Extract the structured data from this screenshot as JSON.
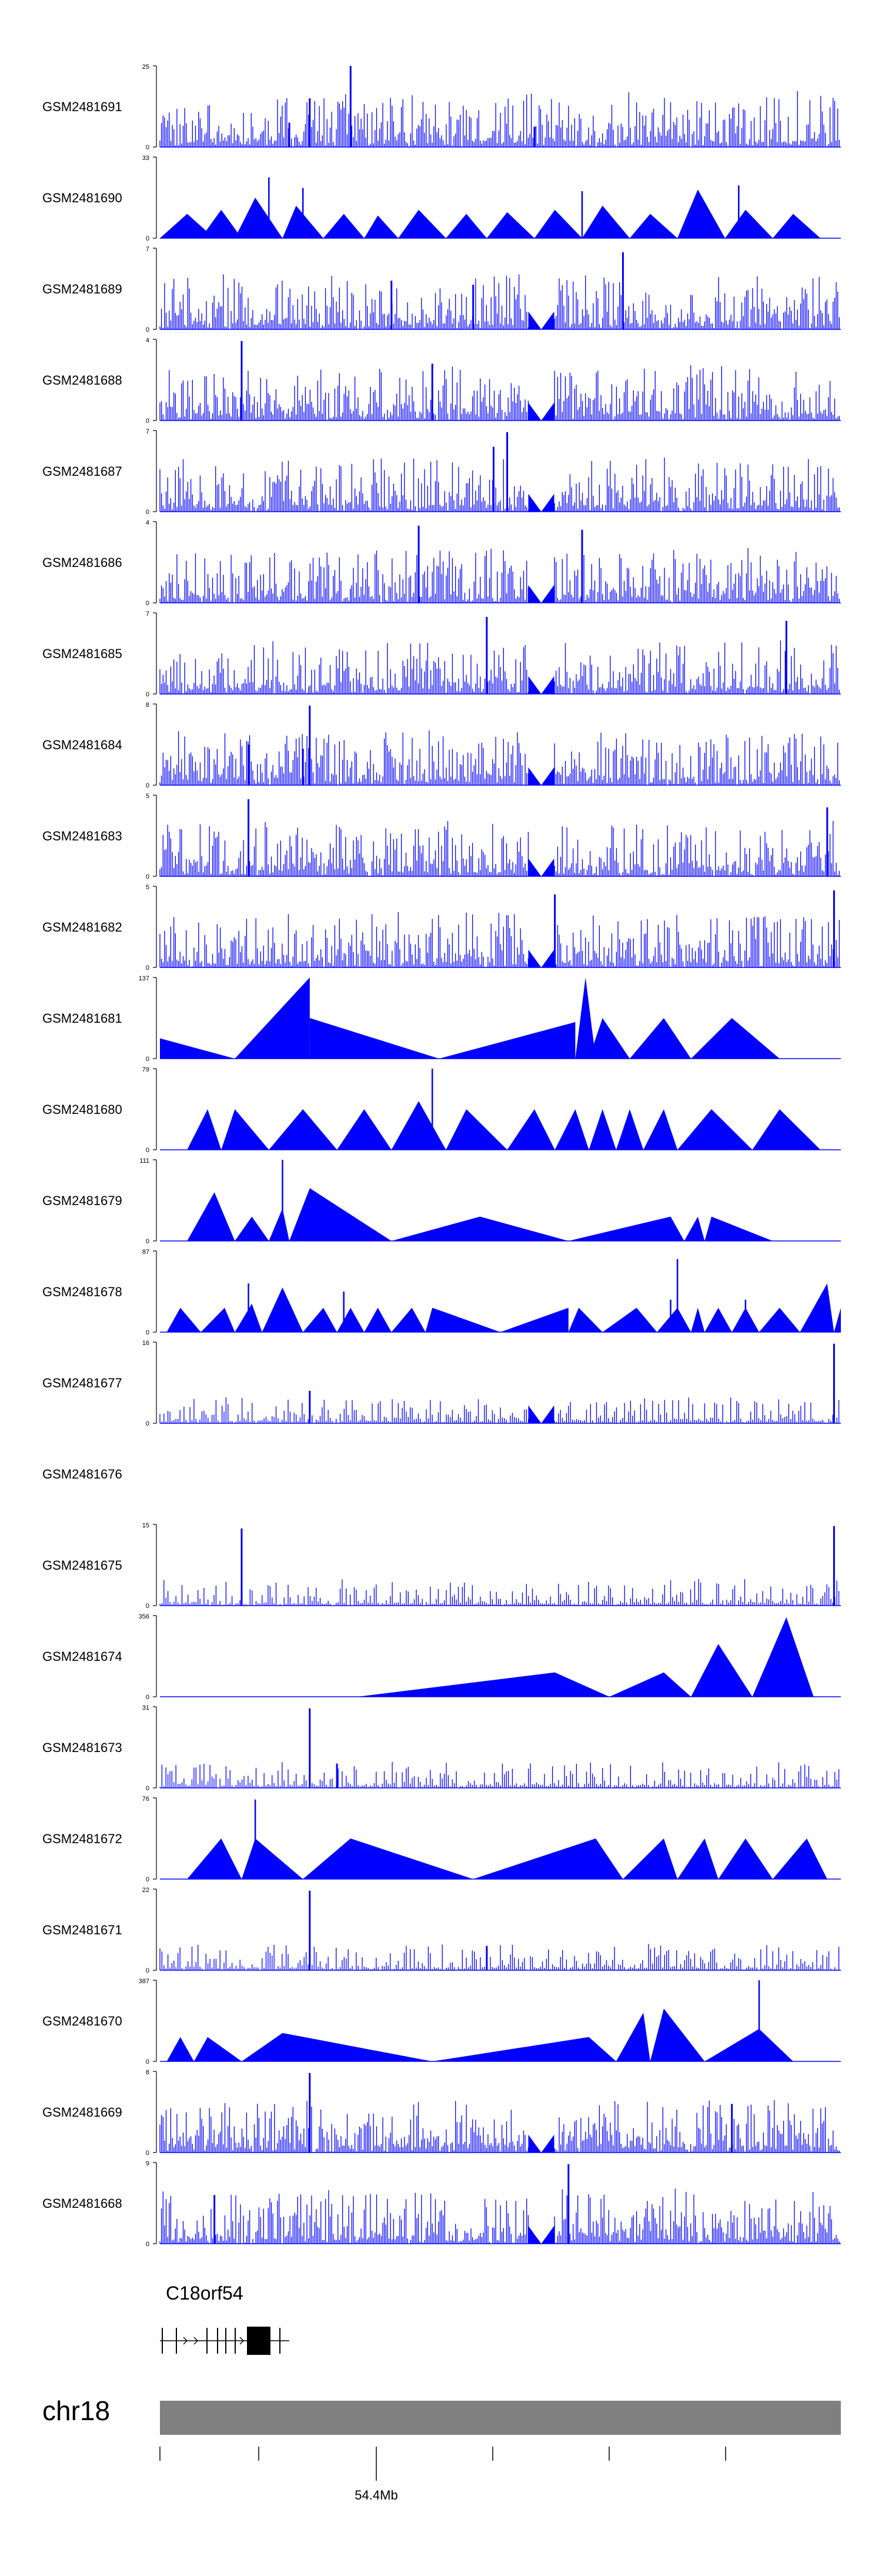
{
  "colors": {
    "track": "#0000ff",
    "axis": "#000000",
    "ideogram": "#808080",
    "gene": "#000000"
  },
  "chart_data": {
    "type": "area",
    "title": "",
    "xlabel": "",
    "ylabel": "",
    "tracks": [
      {
        "name": "GSM2481691",
        "ymax": "25",
        "ymin": "0",
        "max_value": 25,
        "pattern": "dense",
        "peaks": [
          [
            0.22,
            0.6
          ],
          [
            0.28,
            1.0
          ],
          [
            0.19,
            0.3
          ],
          [
            0.55,
            0.25
          ]
        ]
      },
      {
        "name": "GSM2481690",
        "ymax": "33",
        "ymin": "0",
        "max_value": 33,
        "pattern": "tri",
        "tri": [
          [
            0.0,
            0.04,
            0.08,
            0.3
          ],
          [
            0.06,
            0.09,
            0.12,
            0.35
          ],
          [
            0.11,
            0.14,
            0.18,
            0.5
          ],
          [
            0.18,
            0.2,
            0.24,
            0.4
          ],
          [
            0.24,
            0.27,
            0.3,
            0.3
          ],
          [
            0.3,
            0.32,
            0.35,
            0.28
          ],
          [
            0.35,
            0.38,
            0.42,
            0.35
          ],
          [
            0.42,
            0.45,
            0.48,
            0.3
          ],
          [
            0.48,
            0.51,
            0.55,
            0.32
          ],
          [
            0.55,
            0.58,
            0.62,
            0.35
          ],
          [
            0.62,
            0.65,
            0.69,
            0.4
          ],
          [
            0.69,
            0.72,
            0.76,
            0.3
          ],
          [
            0.76,
            0.79,
            0.83,
            0.6
          ],
          [
            0.83,
            0.86,
            0.9,
            0.35
          ],
          [
            0.9,
            0.93,
            0.97,
            0.3
          ]
        ],
        "spikes": [
          [
            0.16,
            0.75
          ],
          [
            0.21,
            0.62
          ],
          [
            0.62,
            0.58
          ],
          [
            0.85,
            0.65
          ]
        ],
        "gap": 0.56
      },
      {
        "name": "GSM2481689",
        "ymax": "7",
        "ymin": "0",
        "max_value": 7,
        "pattern": "dense",
        "peaks": [
          [
            0.68,
            0.95
          ],
          [
            0.34,
            0.6
          ],
          [
            0.46,
            0.55
          ]
        ],
        "gap": 0.56
      },
      {
        "name": "GSM2481688",
        "ymax": "4",
        "ymin": "0",
        "max_value": 4,
        "pattern": "dense",
        "peaks": [
          [
            0.12,
            0.98
          ],
          [
            0.4,
            0.7
          ]
        ],
        "gap": 0.56
      },
      {
        "name": "GSM2481687",
        "ymax": "7",
        "ymin": "0",
        "max_value": 7,
        "pattern": "dense",
        "peaks": [
          [
            0.51,
            0.98
          ],
          [
            0.49,
            0.8
          ]
        ],
        "gap": 0.56
      },
      {
        "name": "GSM2481686",
        "ymax": "4",
        "ymin": "0",
        "max_value": 4,
        "pattern": "dense",
        "peaks": [
          [
            0.38,
            0.95
          ],
          [
            0.62,
            0.9
          ]
        ],
        "gap": 0.56
      },
      {
        "name": "GSM2481685",
        "ymax": "7",
        "ymin": "0",
        "max_value": 7,
        "pattern": "dense",
        "peaks": [
          [
            0.48,
            0.95
          ],
          [
            0.92,
            0.9
          ]
        ],
        "gap": 0.56
      },
      {
        "name": "GSM2481684",
        "ymax": "8",
        "ymin": "0",
        "max_value": 8,
        "pattern": "dense",
        "peaks": [
          [
            0.22,
            0.98
          ],
          [
            0.13,
            0.5
          ],
          [
            0.21,
            0.45
          ]
        ],
        "gap": 0.56
      },
      {
        "name": "GSM2481683",
        "ymax": "5",
        "ymin": "0",
        "max_value": 5,
        "pattern": "dense",
        "peaks": [
          [
            0.13,
            0.95
          ],
          [
            0.98,
            0.85
          ]
        ],
        "gap": 0.56
      },
      {
        "name": "GSM2481682",
        "ymax": "5",
        "ymin": "0",
        "max_value": 5,
        "pattern": "dense",
        "peaks": [
          [
            0.58,
            0.9
          ],
          [
            0.99,
            0.95
          ]
        ],
        "gap": 0.56
      },
      {
        "name": "GSM2481681",
        "ymax": "137",
        "ymin": "0",
        "max_value": 137,
        "pattern": "tri",
        "tri": [
          [
            0.0,
            0.0,
            0.11,
            0.25
          ],
          [
            0.11,
            0.22,
            0.22,
            1.0
          ],
          [
            0.22,
            0.22,
            0.41,
            0.5
          ],
          [
            0.41,
            0.61,
            0.61,
            0.45
          ],
          [
            0.61,
            0.625,
            0.64,
            1.0
          ],
          [
            0.63,
            0.65,
            0.69,
            0.5
          ],
          [
            0.69,
            0.74,
            0.78,
            0.5
          ],
          [
            0.78,
            0.84,
            0.91,
            0.5
          ]
        ],
        "spikes": []
      },
      {
        "name": "GSM2481680",
        "ymax": "79",
        "ymin": "0",
        "max_value": 79,
        "pattern": "tri",
        "tri": [
          [
            0.04,
            0.07,
            0.09,
            0.5
          ],
          [
            0.09,
            0.11,
            0.16,
            0.5
          ],
          [
            0.16,
            0.21,
            0.26,
            0.5
          ],
          [
            0.26,
            0.3,
            0.34,
            0.5
          ],
          [
            0.34,
            0.38,
            0.42,
            0.6
          ],
          [
            0.42,
            0.45,
            0.51,
            0.5
          ],
          [
            0.51,
            0.55,
            0.58,
            0.5
          ],
          [
            0.58,
            0.61,
            0.63,
            0.5
          ],
          [
            0.63,
            0.65,
            0.67,
            0.5
          ],
          [
            0.67,
            0.69,
            0.71,
            0.5
          ],
          [
            0.71,
            0.74,
            0.76,
            0.5
          ],
          [
            0.76,
            0.81,
            0.87,
            0.5
          ],
          [
            0.87,
            0.91,
            0.97,
            0.5
          ]
        ],
        "spikes": [
          [
            0.4,
            1.0
          ]
        ]
      },
      {
        "name": "GSM2481679",
        "ymax": "111",
        "ymin": "0",
        "max_value": 111,
        "pattern": "tri",
        "tri": [
          [
            0.04,
            0.08,
            0.11,
            0.6
          ],
          [
            0.11,
            0.135,
            0.16,
            0.3
          ],
          [
            0.16,
            0.18,
            0.19,
            0.4
          ],
          [
            0.19,
            0.22,
            0.34,
            0.65
          ],
          [
            0.34,
            0.47,
            0.6,
            0.3
          ],
          [
            0.6,
            0.75,
            0.77,
            0.3
          ],
          [
            0.77,
            0.79,
            0.8,
            0.3
          ],
          [
            0.8,
            0.81,
            0.9,
            0.3
          ]
        ],
        "spikes": [
          [
            0.18,
            1.0
          ]
        ]
      },
      {
        "name": "GSM2481678",
        "ymax": "87",
        "ymin": "0",
        "max_value": 87,
        "pattern": "tri",
        "tri": [
          [
            0.01,
            0.03,
            0.06,
            0.3
          ],
          [
            0.06,
            0.095,
            0.11,
            0.3
          ],
          [
            0.11,
            0.135,
            0.15,
            0.35
          ],
          [
            0.15,
            0.18,
            0.21,
            0.55
          ],
          [
            0.21,
            0.24,
            0.26,
            0.3
          ],
          [
            0.26,
            0.28,
            0.3,
            0.3
          ],
          [
            0.3,
            0.32,
            0.34,
            0.3
          ],
          [
            0.34,
            0.37,
            0.39,
            0.3
          ],
          [
            0.39,
            0.4,
            0.5,
            0.3
          ],
          [
            0.5,
            0.6,
            0.6,
            0.3
          ],
          [
            0.6,
            0.615,
            0.65,
            0.3
          ],
          [
            0.65,
            0.7,
            0.73,
            0.3
          ],
          [
            0.73,
            0.76,
            0.78,
            0.3
          ],
          [
            0.78,
            0.79,
            0.8,
            0.3
          ],
          [
            0.8,
            0.82,
            0.84,
            0.3
          ],
          [
            0.84,
            0.86,
            0.88,
            0.3
          ],
          [
            0.88,
            0.91,
            0.94,
            0.3
          ],
          [
            0.94,
            0.98,
            0.99,
            0.6
          ],
          [
            0.99,
            1.0,
            1.0,
            0.3
          ]
        ],
        "spikes": [
          [
            0.13,
            0.6
          ],
          [
            0.27,
            0.5
          ],
          [
            0.75,
            0.4
          ],
          [
            0.76,
            0.9
          ],
          [
            0.86,
            0.4
          ]
        ]
      },
      {
        "name": "GSM2481677",
        "ymax": "16",
        "ymin": "0",
        "max_value": 16,
        "pattern": "sparse",
        "peaks": [
          [
            0.22,
            0.4
          ],
          [
            0.99,
            0.98
          ]
        ],
        "gap": 0.56
      },
      {
        "name": "GSM2481676",
        "ymax": "",
        "ymin": "",
        "max_value": 0,
        "pattern": "empty"
      },
      {
        "name": "GSM2481675",
        "ymax": "15",
        "ymin": "0",
        "max_value": 15,
        "pattern": "sparse",
        "peaks": [
          [
            0.12,
            0.95
          ],
          [
            0.99,
            0.98
          ]
        ]
      },
      {
        "name": "GSM2481674",
        "ymax": "356",
        "ymin": "0",
        "max_value": 356,
        "pattern": "tri",
        "tri": [
          [
            0.29,
            0.58,
            0.66,
            0.3
          ],
          [
            0.66,
            0.74,
            0.78,
            0.3
          ],
          [
            0.78,
            0.82,
            0.87,
            0.65
          ],
          [
            0.87,
            0.92,
            0.96,
            0.98
          ]
        ],
        "spikes": []
      },
      {
        "name": "GSM2481673",
        "ymax": "31",
        "ymin": "0",
        "max_value": 31,
        "pattern": "sparse",
        "peaks": [
          [
            0.22,
            0.98
          ],
          [
            0.26,
            0.3
          ]
        ]
      },
      {
        "name": "GSM2481672",
        "ymax": "76",
        "ymin": "0",
        "max_value": 76,
        "pattern": "tri",
        "tri": [
          [
            0.04,
            0.09,
            0.12,
            0.5
          ],
          [
            0.12,
            0.14,
            0.21,
            0.5
          ],
          [
            0.21,
            0.28,
            0.46,
            0.5
          ],
          [
            0.46,
            0.64,
            0.68,
            0.5
          ],
          [
            0.68,
            0.74,
            0.76,
            0.5
          ],
          [
            0.76,
            0.8,
            0.82,
            0.5
          ],
          [
            0.82,
            0.86,
            0.9,
            0.5
          ],
          [
            0.9,
            0.95,
            0.98,
            0.5
          ]
        ],
        "spikes": [
          [
            0.14,
            0.98
          ]
        ]
      },
      {
        "name": "GSM2481671",
        "ymax": "22",
        "ymin": "0",
        "max_value": 22,
        "pattern": "sparse",
        "peaks": [
          [
            0.22,
            0.98
          ],
          [
            0.48,
            0.3
          ]
        ]
      },
      {
        "name": "GSM2481670",
        "ymax": "387",
        "ymin": "0",
        "max_value": 387,
        "pattern": "tri",
        "tri": [
          [
            0.01,
            0.03,
            0.05,
            0.3
          ],
          [
            0.05,
            0.07,
            0.12,
            0.3
          ],
          [
            0.12,
            0.18,
            0.4,
            0.35
          ],
          [
            0.4,
            0.63,
            0.67,
            0.3
          ],
          [
            0.67,
            0.71,
            0.72,
            0.6
          ],
          [
            0.72,
            0.74,
            0.8,
            0.65
          ],
          [
            0.8,
            0.88,
            0.93,
            0.4
          ]
        ],
        "spikes": [
          [
            0.88,
            1.0
          ]
        ]
      },
      {
        "name": "GSM2481669",
        "ymax": "8",
        "ymin": "0",
        "max_value": 8,
        "pattern": "dense",
        "peaks": [
          [
            0.22,
            0.98
          ],
          [
            0.84,
            0.6
          ]
        ],
        "gap": 0.56
      },
      {
        "name": "GSM2481668",
        "ymax": "9",
        "ymin": "0",
        "max_value": 9,
        "pattern": "dense",
        "peaks": [
          [
            0.6,
            0.98
          ],
          [
            0.08,
            0.6
          ]
        ],
        "gap": 0.56
      }
    ],
    "gene": {
      "name": "C18orf54",
      "strand": "+"
    },
    "chromosome": {
      "name": "chr18",
      "tick_label": "54.4Mb"
    }
  }
}
